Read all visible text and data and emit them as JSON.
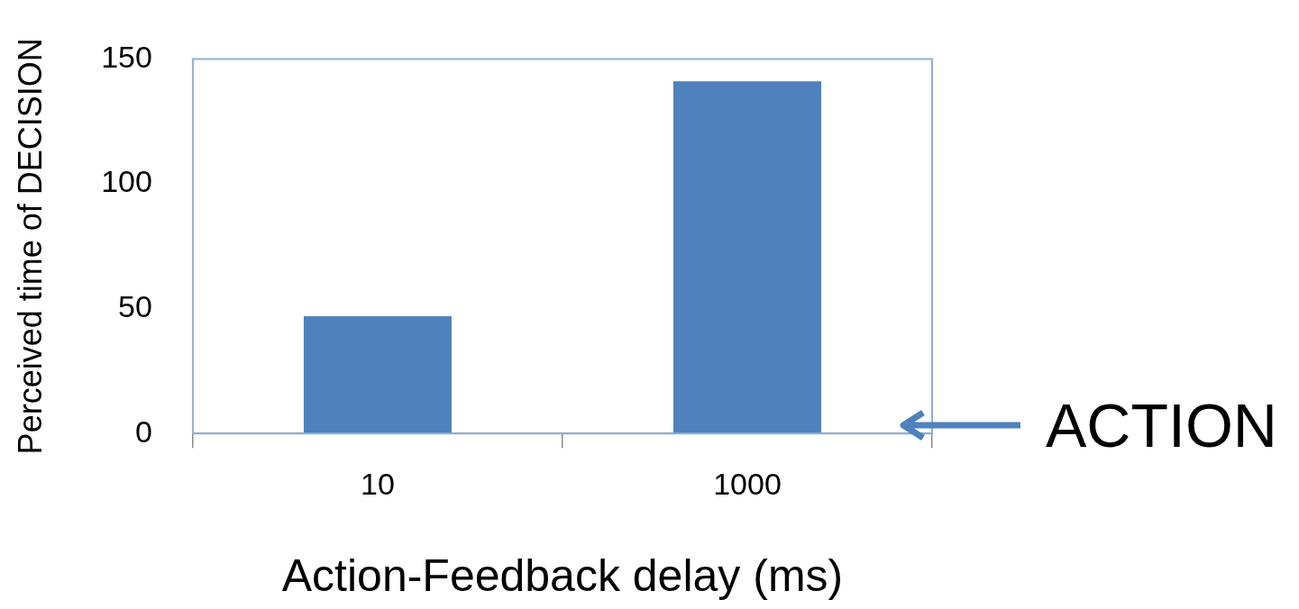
{
  "chart_data": {
    "type": "bar",
    "xlabel": "Action-Feedback delay (ms)",
    "ylabel": "Perceived time of DECISION",
    "categories": [
      "10",
      "1000"
    ],
    "values": [
      47,
      141
    ],
    "color": "#4f81bd",
    "ylim": [
      0,
      150
    ],
    "yticks": [
      0,
      50,
      100,
      150
    ],
    "grid": false,
    "legend": false,
    "annotations": [
      "ACTION"
    ]
  }
}
